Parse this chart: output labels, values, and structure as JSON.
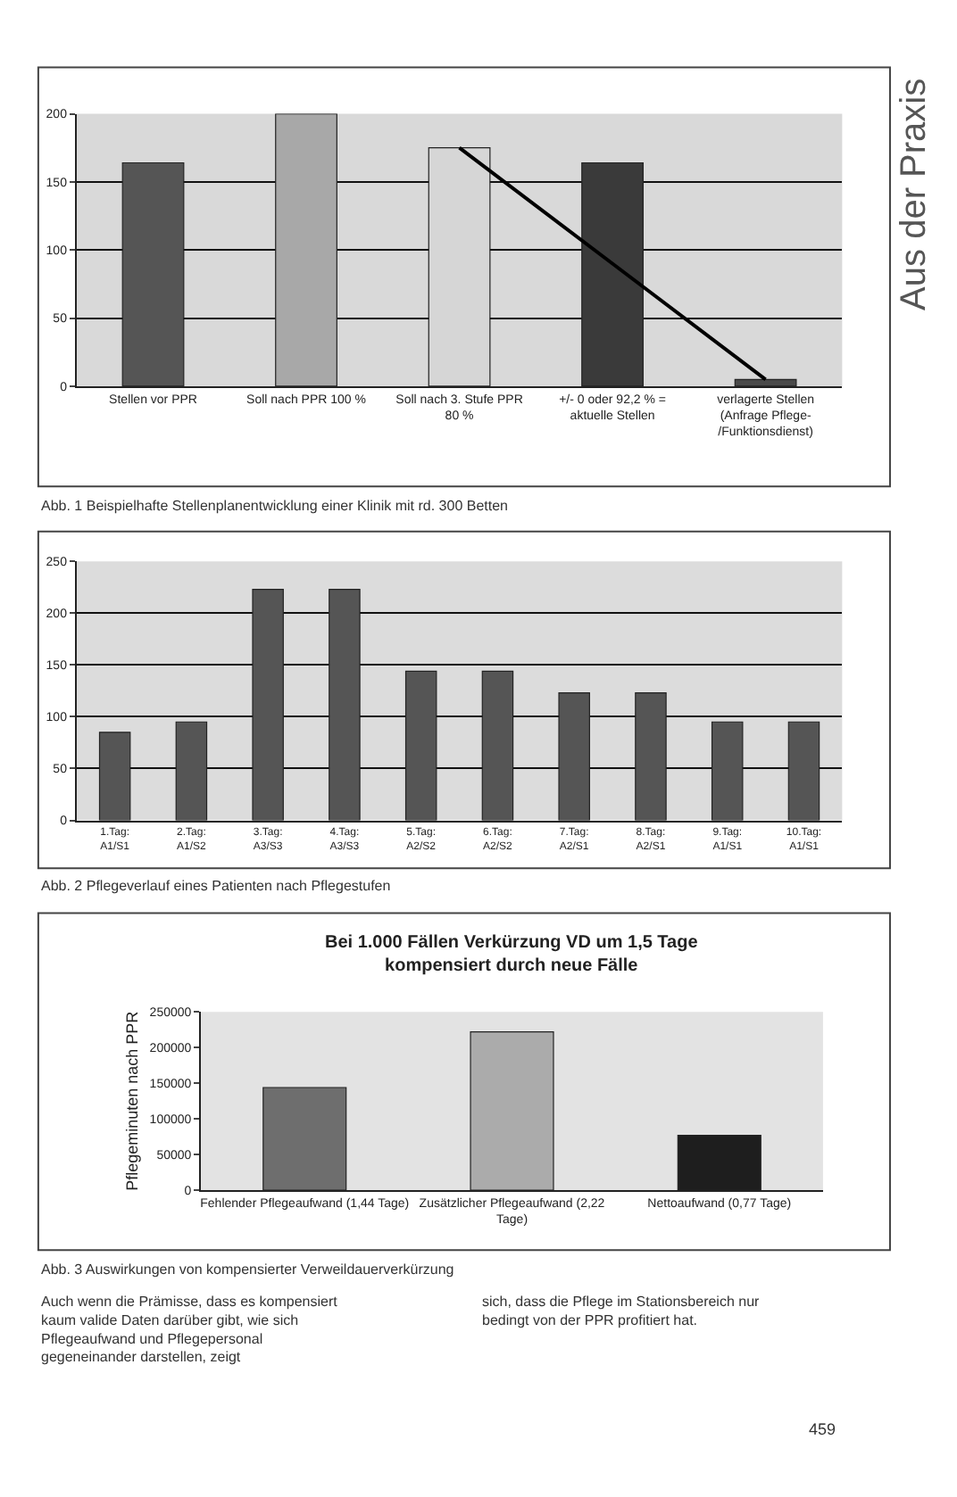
{
  "chart_data": [
    {
      "type": "bar",
      "categories": [
        "Stellen vor PPR",
        "Soll nach PPR 100 %",
        "Soll nach 3. Stufe PPR 80 %",
        "+/- 0 oder 92,2 % = aktuelle Stellen",
        "verlagerte Stellen (Anfrage Pflege-/Funktionsdienst)"
      ],
      "series": [
        {
          "colors": [
            "#555555",
            "#a8a8a8",
            "#d6d6d6",
            "#3a3a3a",
            "#4a4a4a"
          ],
          "values": [
            164,
            200,
            175,
            164,
            5
          ]
        },
        {
          "type": "line",
          "color": "#000000",
          "values": [
            null,
            null,
            175,
            90,
            5
          ]
        }
      ],
      "ylim": [
        0,
        200
      ],
      "yticks": [
        0,
        50,
        100,
        150,
        200
      ],
      "grid": "y",
      "legend": false,
      "annotations": [
        "Abb. 1 Beispielhafte Stellenplanentwicklung einer Klinik mit rd. 300 Betten",
        "Aus der Praxis"
      ]
    },
    {
      "type": "bar",
      "categories": [
        "1.Tag: A1/S1",
        "2.Tag: A1/S2",
        "3.Tag: A3/S3",
        "4.Tag: A3/S3",
        "5.Tag: A2/S2",
        "6.Tag: A2/S2",
        "7.Tag: A2/S1",
        "8.Tag: A2/S1",
        "9.Tag: A1/S1",
        "10.Tag: A1/S1"
      ],
      "series": [
        {
          "color": "#555555",
          "values": [
            85,
            95,
            223,
            223,
            144,
            144,
            123,
            123,
            95,
            95
          ]
        }
      ],
      "ylim": [
        0,
        250
      ],
      "yticks": [
        0,
        50,
        100,
        150,
        200,
        250
      ],
      "grid": "y",
      "legend": false,
      "annotations": [
        "Abb. 2 Pflegeverlauf eines Patienten nach Pflegestufen"
      ]
    },
    {
      "type": "bar",
      "title": "Bei 1.000 Fällen Verkürzung VD um 1,5 Tage\nkompensiert durch neue Fälle",
      "ylabel": "Pflegeminuten nach PPR",
      "categories": [
        "Fehlender Pflegeaufwand (1,44 Tage)",
        "Zusätzlicher Pflegeaufwand (2,22 Tage)",
        "Nettoaufwand (0,77 Tage)"
      ],
      "series": [
        {
          "colors": [
            "#6e6e6e",
            "#ababab",
            "#1e1e1e"
          ],
          "values": [
            144000,
            222000,
            77000
          ]
        }
      ],
      "ylim": [
        0,
        250000
      ],
      "yticks": [
        0,
        50000,
        100000,
        150000,
        200000,
        250000
      ],
      "grid": false,
      "legend": false,
      "annotations": [
        "Abb. 3 Auswirkungen von kompensierter Verweildauerverkürzung",
        "Auch wenn die Prämisse, dass es kompensiert kaum valide Daten darüber gibt, wie sich Pflegeaufwand und Pflegepersonal gegeneinander darstellen, zeigt",
        "sich, dass die Pflege im Stationsbereich nur bedingt von der PPR profitiert hat.",
        "459"
      ]
    }
  ]
}
